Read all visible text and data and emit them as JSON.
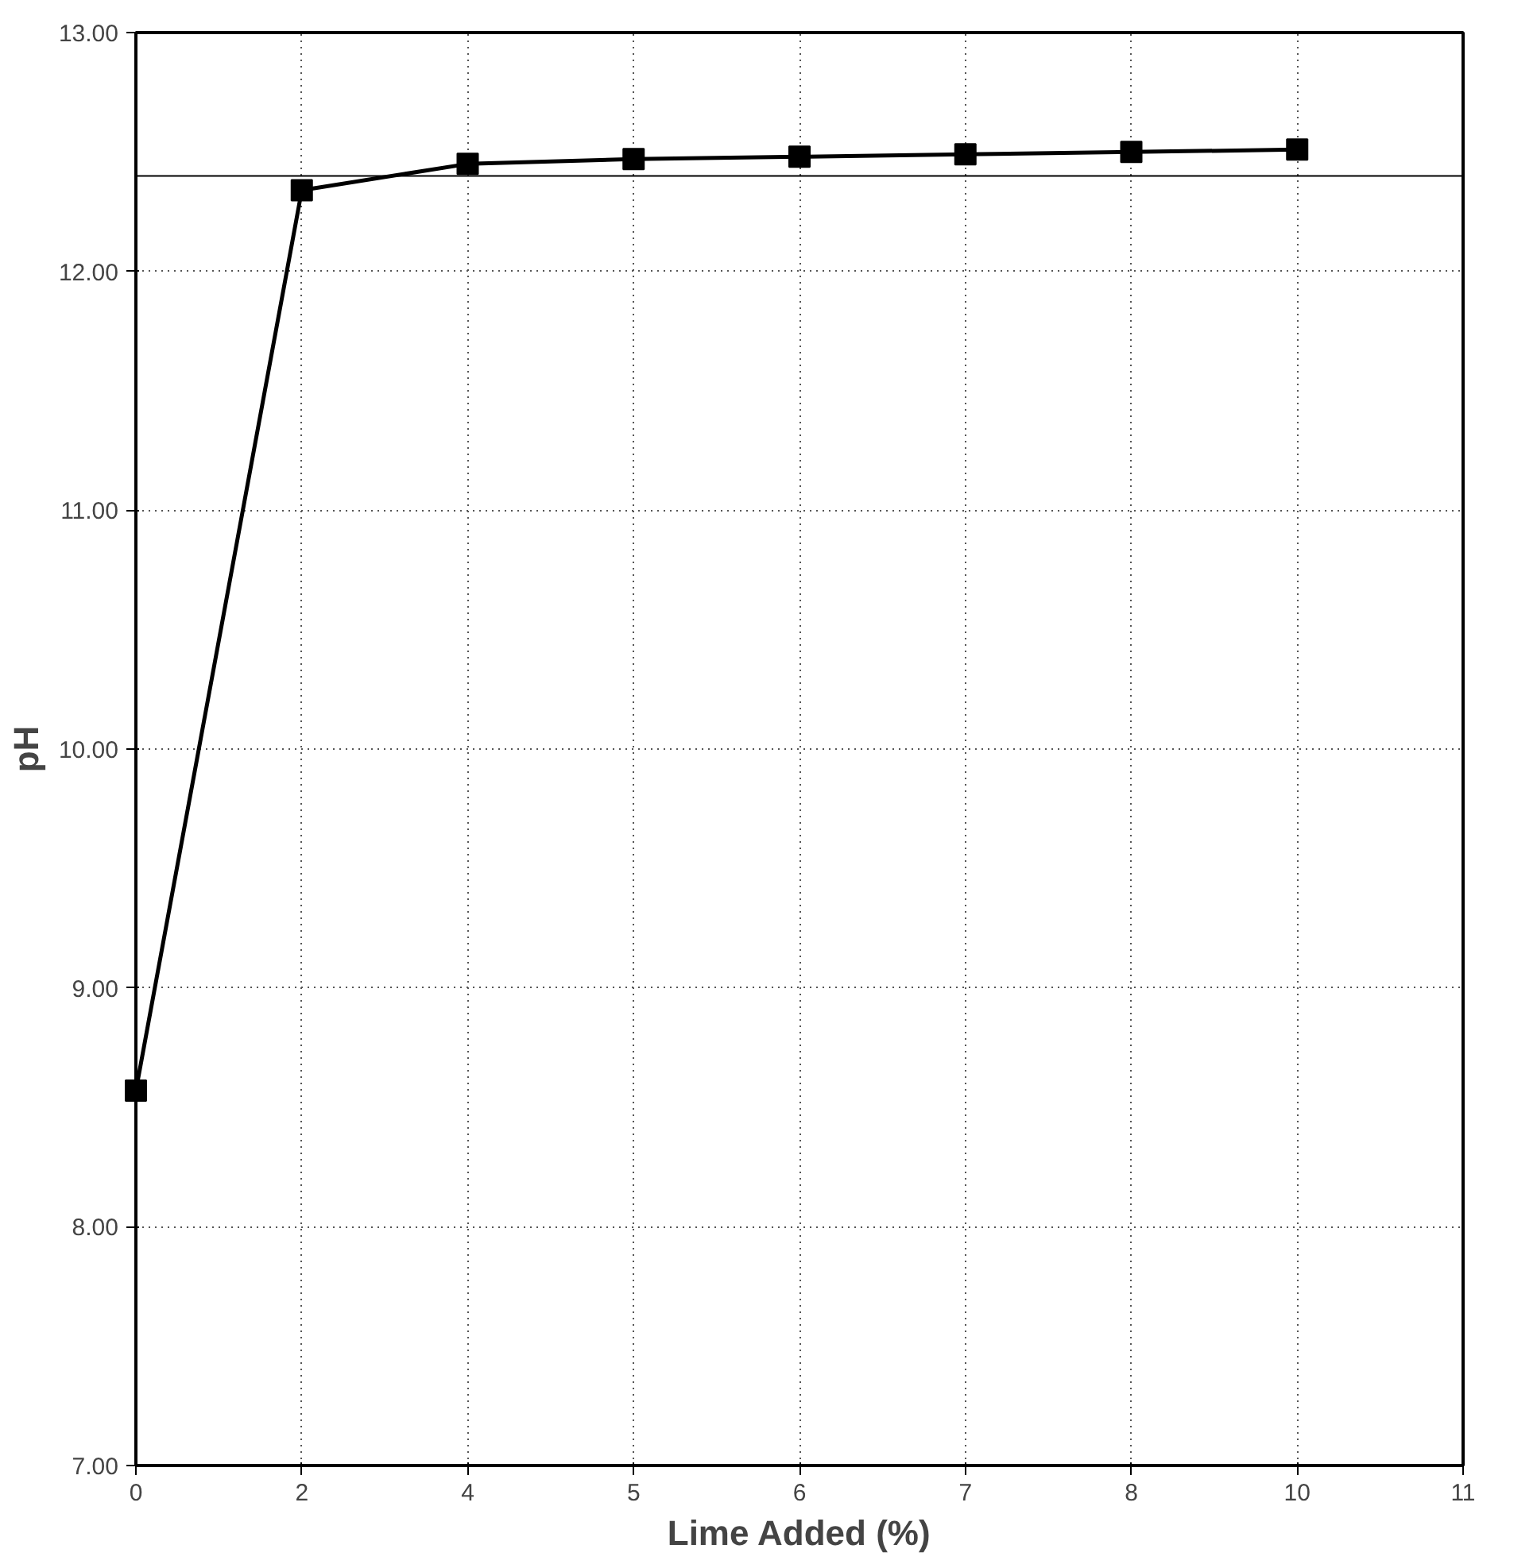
{
  "chart_data": {
    "type": "line",
    "xlabel": "Lime Added (%)",
    "ylabel": "pH",
    "categories": [
      "0",
      "2",
      "4",
      "5",
      "6",
      "7",
      "8",
      "10",
      "11"
    ],
    "series": [
      {
        "color": "#000000",
        "values": [
          8.57,
          12.34,
          12.45,
          12.47,
          12.48,
          12.49,
          12.5,
          12.51,
          null
        ]
      }
    ],
    "ylim": [
      7,
      13
    ],
    "yticks": [
      {
        "value": 7,
        "label": "7.00"
      },
      {
        "value": 8,
        "label": "8.00"
      },
      {
        "value": 9,
        "label": "9.00"
      },
      {
        "value": 10,
        "label": "10.00"
      },
      {
        "value": 11,
        "label": "11.00"
      },
      {
        "value": 12,
        "label": "12.00"
      },
      {
        "value": 13,
        "label": "13.00"
      }
    ],
    "ref_lines": [
      {
        "axis": "y",
        "value": 12.4,
        "color": "#000000",
        "line_style": "solid"
      }
    ],
    "grid": true,
    "marker": "square",
    "line_style": "solid"
  }
}
